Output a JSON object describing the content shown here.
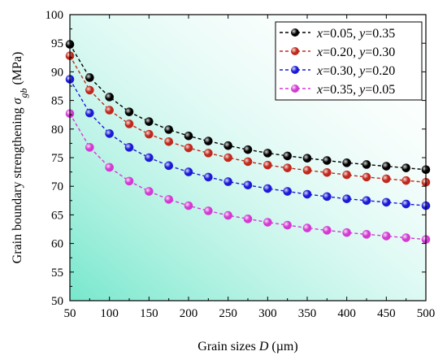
{
  "chart_data": {
    "type": "line",
    "xlabel_parts": [
      {
        "text": "Grain sizes ",
        "italic": false,
        "sub": false
      },
      {
        "text": "D",
        "italic": true,
        "sub": false
      },
      {
        "text": " (µm)",
        "italic": false,
        "sub": false
      }
    ],
    "ylabel_parts": [
      {
        "text": "Grain boundary strengthening ",
        "italic": false,
        "sub": false
      },
      {
        "text": "σ",
        "italic": true,
        "sub": false
      },
      {
        "text": "gb",
        "italic": true,
        "sub": true
      },
      {
        "text": " (MPa)",
        "italic": false,
        "sub": false
      }
    ],
    "xlim": [
      50,
      500
    ],
    "ylim": [
      50,
      100
    ],
    "xticks": [
      50,
      100,
      150,
      200,
      250,
      300,
      350,
      400,
      450,
      500
    ],
    "yticks": [
      50,
      55,
      60,
      65,
      70,
      75,
      80,
      85,
      90,
      95,
      100
    ],
    "legend_position": "top-right",
    "x": [
      50,
      75,
      100,
      125,
      150,
      175,
      200,
      225,
      250,
      275,
      300,
      325,
      350,
      375,
      400,
      425,
      450,
      475,
      500
    ],
    "series": [
      {
        "name_parts": [
          {
            "text": "x",
            "italic": true
          },
          {
            "text": "=0.05, ",
            "italic": false
          },
          {
            "text": "y",
            "italic": true
          },
          {
            "text": "=0.35",
            "italic": false
          }
        ],
        "color": "#000000",
        "values": [
          94.8,
          89.0,
          85.6,
          83.0,
          81.3,
          79.9,
          78.8,
          77.9,
          77.1,
          76.4,
          75.8,
          75.3,
          74.9,
          74.5,
          74.1,
          73.8,
          73.5,
          73.2,
          72.9
        ]
      },
      {
        "name_parts": [
          {
            "text": "x",
            "italic": true
          },
          {
            "text": "=0.20, ",
            "italic": false
          },
          {
            "text": "y",
            "italic": true
          },
          {
            "text": "=0.30",
            "italic": false
          }
        ],
        "color": "#c0281c",
        "values": [
          92.8,
          86.8,
          83.3,
          80.9,
          79.1,
          77.8,
          76.7,
          75.8,
          75.0,
          74.3,
          73.7,
          73.2,
          72.8,
          72.4,
          72.0,
          71.6,
          71.3,
          71.0,
          70.7
        ]
      },
      {
        "name_parts": [
          {
            "text": "x",
            "italic": true
          },
          {
            "text": "=0.30, ",
            "italic": false
          },
          {
            "text": "y",
            "italic": true
          },
          {
            "text": "=0.20",
            "italic": false
          }
        ],
        "color": "#1a1ad6",
        "values": [
          88.7,
          82.8,
          79.2,
          76.8,
          75.0,
          73.6,
          72.5,
          71.6,
          70.8,
          70.2,
          69.6,
          69.1,
          68.6,
          68.2,
          67.8,
          67.5,
          67.2,
          66.9,
          66.6
        ]
      },
      {
        "name_parts": [
          {
            "text": "x",
            "italic": true
          },
          {
            "text": "=0.35, ",
            "italic": false
          },
          {
            "text": "y",
            "italic": true
          },
          {
            "text": "=0.05",
            "italic": false
          }
        ],
        "color": "#d23ad2",
        "values": [
          82.7,
          76.8,
          73.3,
          70.9,
          69.1,
          67.7,
          66.6,
          65.7,
          64.9,
          64.3,
          63.7,
          63.2,
          62.7,
          62.3,
          61.9,
          61.6,
          61.3,
          61.0,
          60.7
        ]
      }
    ]
  }
}
